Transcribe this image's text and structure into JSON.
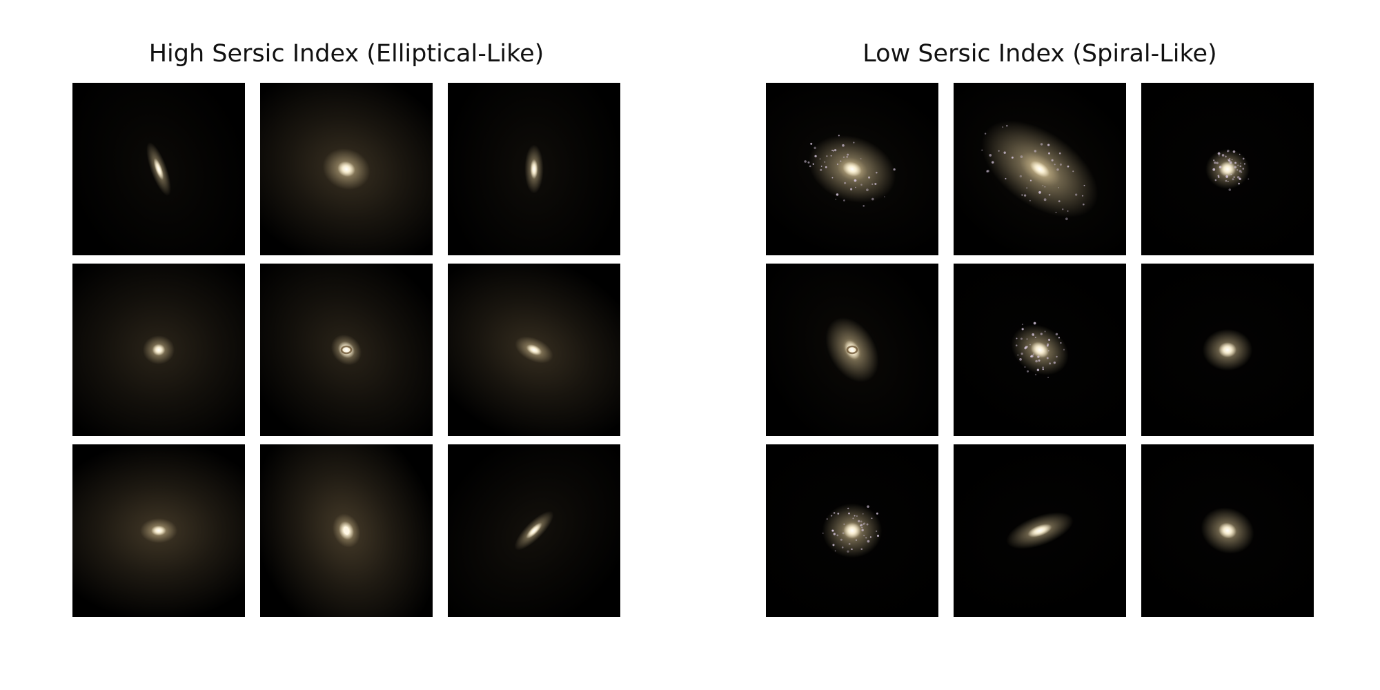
{
  "panels": [
    {
      "title": "High Sersic Index (Elliptical-Like)",
      "galaxies": [
        {
          "halo": 0.15,
          "bulge": "compact",
          "elongation": 3.5,
          "angle": 70
        },
        {
          "halo": 0.75,
          "bulge": "diffuse",
          "elongation": 1.2,
          "angle": 20
        },
        {
          "halo": 0.2,
          "bulge": "compact",
          "elongation": 2.6,
          "angle": 90
        },
        {
          "halo": 0.55,
          "bulge": "compact",
          "elongation": 1.1,
          "angle": 0
        },
        {
          "halo": 0.55,
          "bulge": "ring",
          "elongation": 1.2,
          "angle": 45
        },
        {
          "halo": 0.7,
          "bulge": "compact",
          "elongation": 1.8,
          "angle": 25
        },
        {
          "halo": 0.85,
          "bulge": "compact",
          "elongation": 1.5,
          "angle": 0
        },
        {
          "halo": 0.9,
          "bulge": "double",
          "elongation": 1.3,
          "angle": 70
        },
        {
          "halo": 0.25,
          "bulge": "compact",
          "elongation": 3.0,
          "angle": 135
        }
      ]
    },
    {
      "title": "Low Sersic Index (Spiral-Like)",
      "galaxies": [
        {
          "halo": 0.15,
          "bulge": "disk",
          "elongation": 1.4,
          "angle": 20,
          "disk_size": 1.0,
          "clumps": true
        },
        {
          "halo": 0.15,
          "bulge": "disk",
          "elongation": 1.8,
          "angle": 35,
          "disk_size": 1.3,
          "clumps": true
        },
        {
          "halo": 0.05,
          "bulge": "disk",
          "elongation": 1.1,
          "angle": 0,
          "disk_size": 0.55,
          "clumps": true
        },
        {
          "halo": 0.15,
          "bulge": "ring",
          "elongation": 1.5,
          "angle": 60,
          "disk_size": 0.75,
          "clumps": false
        },
        {
          "halo": 0.05,
          "bulge": "disk",
          "elongation": 1.3,
          "angle": 30,
          "disk_size": 0.7,
          "clumps": true
        },
        {
          "halo": 0.05,
          "bulge": "disk",
          "elongation": 1.2,
          "angle": 0,
          "disk_size": 0.6,
          "clumps": false
        },
        {
          "halo": 0.05,
          "bulge": "disk",
          "elongation": 1.1,
          "angle": 0,
          "disk_size": 0.75,
          "clumps": true
        },
        {
          "halo": 0.05,
          "bulge": "disk",
          "elongation": 2.4,
          "angle": 160,
          "disk_size": 0.6,
          "clumps": false
        },
        {
          "halo": 0.05,
          "bulge": "disk",
          "elongation": 1.2,
          "angle": 20,
          "disk_size": 0.65,
          "clumps": false
        }
      ]
    }
  ],
  "colors": {
    "core": "#fff6dc",
    "glow": "#e8d2a0",
    "halo": "#8a7552",
    "clump": "#d8c8e0",
    "background": "#000000"
  }
}
